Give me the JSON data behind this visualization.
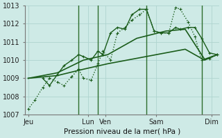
{
  "bg_color": "#ceeae6",
  "grid_color": "#aed4cf",
  "line_color": "#1a5c1a",
  "xlabel": "Pression niveau de la mer( hPa )",
  "ylim": [
    1007,
    1013
  ],
  "yticks": [
    1007,
    1008,
    1009,
    1010,
    1011,
    1012,
    1013
  ],
  "xlim": [
    0,
    20
  ],
  "x_day_labels": [
    "Jeu",
    "Lun",
    "Ven",
    "Sam",
    "Dim"
  ],
  "x_day_positions": [
    0.3,
    6.5,
    8.3,
    13.5,
    19.2
  ],
  "vlines_x": [
    5.5,
    7.5,
    12.5,
    18.2
  ],
  "vline_color": "#2d6e2d",
  "series": [
    {
      "x": [
        0.3,
        1.0,
        1.8,
        2.5,
        3.3,
        4.0,
        4.8,
        5.5,
        6.0,
        6.8,
        7.5,
        8.0,
        8.8,
        9.5,
        10.3,
        11.0,
        11.8,
        12.5,
        13.3,
        14.0,
        14.8,
        15.5,
        16.0,
        16.8,
        17.5,
        18.2,
        19.0,
        19.8
      ],
      "y": [
        1007.3,
        1007.8,
        1008.5,
        1009.0,
        1008.8,
        1008.6,
        1009.1,
        1009.5,
        1009.0,
        1008.9,
        1009.8,
        1010.5,
        1010.0,
        1011.5,
        1011.8,
        1012.2,
        1012.5,
        1012.8,
        1011.6,
        1011.5,
        1011.5,
        1012.9,
        1012.8,
        1012.1,
        1011.3,
        1010.0,
        1010.1,
        1010.3
      ],
      "linestyle": "dotted",
      "lw": 1.0,
      "marker": "+"
    },
    {
      "x": [
        1.8,
        2.5,
        3.3,
        4.0,
        4.8,
        5.5,
        6.0,
        6.8,
        7.5,
        8.0,
        8.8,
        9.5,
        10.3,
        11.0,
        11.8,
        12.5,
        13.3,
        14.0,
        14.8,
        15.5,
        16.0,
        16.8,
        17.5,
        18.2,
        19.0,
        19.8
      ],
      "y": [
        1009.0,
        1008.6,
        1009.2,
        1009.7,
        1010.0,
        1010.3,
        1010.2,
        1010.0,
        1010.5,
        1010.3,
        1011.5,
        1011.8,
        1011.7,
        1012.5,
        1012.8,
        1012.8,
        1011.6,
        1011.5,
        1011.5,
        1011.8,
        1011.7,
        1011.8,
        1011.8,
        1011.2,
        1010.4,
        1010.3
      ],
      "linestyle": "solid",
      "lw": 1.0,
      "marker": "+"
    },
    {
      "x": [
        0.3,
        3.3,
        6.0,
        8.5,
        11.5,
        14.5,
        16.5,
        18.5,
        19.8
      ],
      "y": [
        1009.0,
        1009.3,
        1010.0,
        1010.3,
        1011.2,
        1011.6,
        1011.7,
        1010.05,
        1010.3
      ],
      "linestyle": "solid",
      "lw": 1.2,
      "marker": null
    },
    {
      "x": [
        0.3,
        3.3,
        6.0,
        8.5,
        11.5,
        14.5,
        16.5,
        18.5,
        19.8
      ],
      "y": [
        1009.0,
        1009.15,
        1009.5,
        1009.8,
        1010.1,
        1010.4,
        1010.6,
        1010.0,
        1010.3
      ],
      "linestyle": "solid",
      "lw": 1.2,
      "marker": null
    }
  ]
}
